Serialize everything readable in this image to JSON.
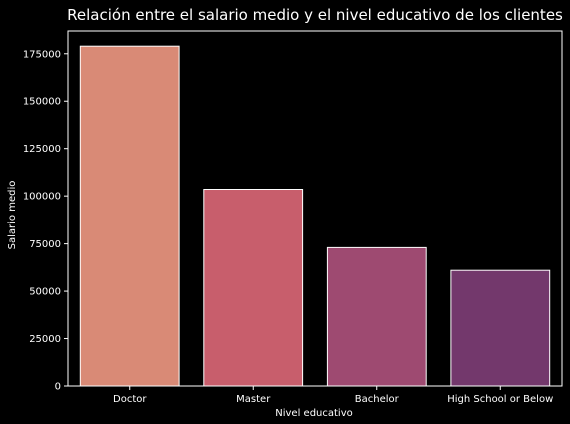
{
  "chart_data": {
    "type": "bar",
    "title": "Relación entre el salario medio y el nivel educativo de los clientes",
    "xlabel": "Nivel educativo",
    "ylabel": "Salario medio",
    "categories": [
      "Doctor",
      "Master",
      "Bachelor",
      "High School or Below"
    ],
    "values": [
      179000,
      103500,
      73000,
      61000
    ],
    "ylim": [
      0,
      187000
    ],
    "yticks": [
      0,
      25000,
      50000,
      75000,
      100000,
      125000,
      150000,
      175000
    ],
    "ytick_labels": [
      "0",
      "25000",
      "50000",
      "75000",
      "100000",
      "125000",
      "150000",
      "175000"
    ],
    "grid": false,
    "colors": [
      "#d98a76",
      "#c85e6c",
      "#9e4a71",
      "#73386c"
    ],
    "background": "#000000",
    "foreground": "#ffffff"
  }
}
